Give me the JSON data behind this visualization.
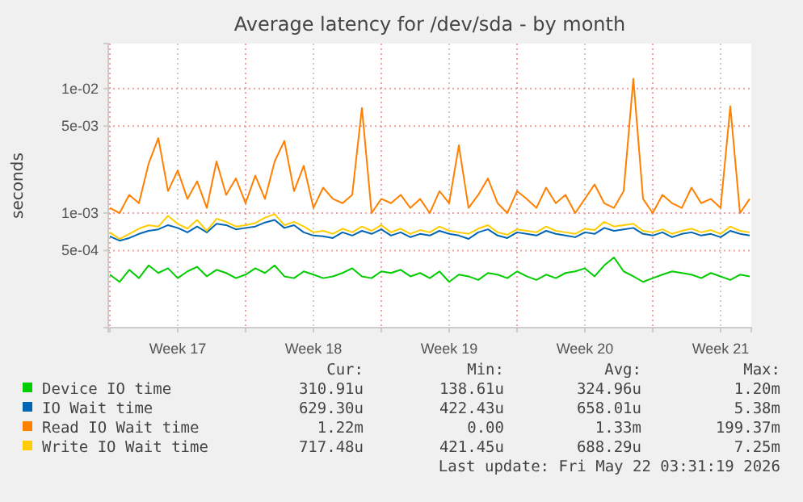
{
  "chart_data": {
    "type": "line",
    "title": "Average latency for /dev/sda - by month",
    "ylabel": "seconds",
    "x": [
      "2026-04-20T00:00",
      "2026-04-20T12:00",
      "2026-04-21T00:00",
      "2026-04-21T12:00",
      "2026-04-22T00:00",
      "2026-04-22T12:00",
      "2026-04-23T00:00",
      "2026-04-23T12:00",
      "2026-04-24T00:00",
      "2026-04-24T12:00",
      "2026-04-25T00:00",
      "2026-04-25T12:00",
      "2026-04-26T00:00",
      "2026-04-26T12:00",
      "2026-04-27T00:00",
      "2026-04-27T12:00",
      "2026-04-28T00:00",
      "2026-04-28T12:00",
      "2026-04-29T00:00",
      "2026-04-29T12:00",
      "2026-04-30T00:00",
      "2026-04-30T12:00",
      "2026-05-01T00:00",
      "2026-05-01T12:00",
      "2026-05-02T00:00",
      "2026-05-02T12:00",
      "2026-05-03T00:00",
      "2026-05-03T12:00",
      "2026-05-04T00:00",
      "2026-05-04T12:00",
      "2026-05-05T00:00",
      "2026-05-05T12:00",
      "2026-05-06T00:00",
      "2026-05-06T12:00",
      "2026-05-07T00:00",
      "2026-05-07T12:00",
      "2026-05-08T00:00",
      "2026-05-08T12:00",
      "2026-05-09T00:00",
      "2026-05-09T12:00",
      "2026-05-10T00:00",
      "2026-05-10T12:00",
      "2026-05-11T00:00",
      "2026-05-11T12:00",
      "2026-05-12T00:00",
      "2026-05-12T12:00",
      "2026-05-13T00:00",
      "2026-05-13T12:00",
      "2026-05-14T00:00",
      "2026-05-14T12:00",
      "2026-05-15T00:00",
      "2026-05-15T12:00",
      "2026-05-16T00:00",
      "2026-05-16T12:00",
      "2026-05-17T00:00",
      "2026-05-17T12:00",
      "2026-05-18T00:00",
      "2026-05-18T12:00",
      "2026-05-19T00:00",
      "2026-05-19T12:00",
      "2026-05-20T00:00",
      "2026-05-20T12:00",
      "2026-05-21T00:00",
      "2026-05-21T12:00",
      "2026-05-22T00:00",
      "2026-05-22T12:00",
      "2026-05-23T00:00"
    ],
    "series": [
      {
        "name": "Device IO time",
        "color": "#00cc00",
        "values": [
          0.00032,
          0.00028,
          0.00035,
          0.0003,
          0.00038,
          0.00033,
          0.00036,
          0.0003,
          0.00034,
          0.00037,
          0.00031,
          0.00035,
          0.00033,
          0.0003,
          0.00032,
          0.00036,
          0.00033,
          0.00038,
          0.00031,
          0.0003,
          0.00034,
          0.00032,
          0.0003,
          0.00031,
          0.00033,
          0.00036,
          0.00031,
          0.0003,
          0.00034,
          0.00033,
          0.00035,
          0.00031,
          0.00033,
          0.0003,
          0.00034,
          0.00028,
          0.00032,
          0.00031,
          0.00029,
          0.00033,
          0.00032,
          0.0003,
          0.00034,
          0.00031,
          0.00029,
          0.00032,
          0.0003,
          0.00033,
          0.00034,
          0.00036,
          0.00031,
          0.00038,
          0.00044,
          0.00034,
          0.00031,
          0.00028,
          0.0003,
          0.00032,
          0.00034,
          0.00033,
          0.00032,
          0.0003,
          0.00033,
          0.00031,
          0.00029,
          0.00032,
          0.00031
        ]
      },
      {
        "name": "IO Wait time",
        "color": "#0066b3",
        "values": [
          0.00065,
          0.0006,
          0.00063,
          0.00068,
          0.00072,
          0.00074,
          0.0008,
          0.00076,
          0.0007,
          0.00078,
          0.0007,
          0.00082,
          0.0008,
          0.00074,
          0.00076,
          0.00078,
          0.00084,
          0.00088,
          0.00076,
          0.0008,
          0.0007,
          0.00066,
          0.00065,
          0.00063,
          0.0007,
          0.00066,
          0.00072,
          0.00068,
          0.00074,
          0.00066,
          0.0007,
          0.00064,
          0.00068,
          0.00066,
          0.00072,
          0.00068,
          0.00066,
          0.00062,
          0.0007,
          0.00074,
          0.00066,
          0.00063,
          0.0007,
          0.00068,
          0.00066,
          0.00072,
          0.00068,
          0.00066,
          0.00064,
          0.0007,
          0.00068,
          0.00076,
          0.00072,
          0.00074,
          0.00076,
          0.00068,
          0.00066,
          0.0007,
          0.00064,
          0.00068,
          0.0007,
          0.00066,
          0.00068,
          0.00064,
          0.00072,
          0.00068,
          0.00066
        ]
      },
      {
        "name": "Read IO Wait time",
        "color": "#ff8000",
        "values": [
          0.0011,
          0.001,
          0.0014,
          0.0012,
          0.0025,
          0.004,
          0.0015,
          0.0022,
          0.0013,
          0.0018,
          0.0011,
          0.0026,
          0.0014,
          0.0019,
          0.0012,
          0.002,
          0.0013,
          0.0026,
          0.0038,
          0.0015,
          0.0024,
          0.0011,
          0.0016,
          0.0013,
          0.0012,
          0.0014,
          0.007,
          0.001,
          0.0013,
          0.0012,
          0.0014,
          0.0011,
          0.0013,
          0.001,
          0.0015,
          0.0012,
          0.0035,
          0.0011,
          0.0014,
          0.0019,
          0.0012,
          0.001,
          0.0015,
          0.0013,
          0.0011,
          0.0016,
          0.0012,
          0.0014,
          0.001,
          0.0013,
          0.0017,
          0.0012,
          0.0011,
          0.0015,
          0.012,
          0.0013,
          0.001,
          0.0014,
          0.0012,
          0.0011,
          0.0016,
          0.0012,
          0.0013,
          0.0011,
          0.0072,
          0.001,
          0.0013
        ]
      },
      {
        "name": "Write IO Wait time",
        "color": "#ffcc00",
        "values": [
          0.0007,
          0.00062,
          0.00068,
          0.00075,
          0.0008,
          0.00078,
          0.00095,
          0.00082,
          0.00075,
          0.00088,
          0.00072,
          0.0009,
          0.00085,
          0.00078,
          0.0008,
          0.00083,
          0.00092,
          0.00098,
          0.0008,
          0.00085,
          0.00078,
          0.0007,
          0.00072,
          0.00068,
          0.00075,
          0.0007,
          0.00078,
          0.00072,
          0.0008,
          0.0007,
          0.00075,
          0.00068,
          0.00073,
          0.0007,
          0.00078,
          0.00072,
          0.0007,
          0.00068,
          0.00075,
          0.0008,
          0.0007,
          0.00067,
          0.00074,
          0.00072,
          0.0007,
          0.00078,
          0.00072,
          0.0007,
          0.00068,
          0.00075,
          0.00073,
          0.00085,
          0.00078,
          0.0008,
          0.00082,
          0.00072,
          0.0007,
          0.00074,
          0.00068,
          0.00072,
          0.00075,
          0.0007,
          0.00073,
          0.00068,
          0.00078,
          0.00072,
          0.0007
        ]
      }
    ],
    "log": true,
    "ylim": [
      0.00012,
      0.023
    ],
    "yticks": [
      {
        "value": 0.0005,
        "label": "5e-04"
      },
      {
        "value": 0.001,
        "label": "1e-03"
      },
      {
        "value": 0.005,
        "label": "5e-03"
      },
      {
        "value": 0.01,
        "label": "1e-02"
      }
    ],
    "xlim": [
      "2026-04-19T22:00",
      "2026-05-23T02:00"
    ],
    "xticks": [
      {
        "value": "2026-04-20",
        "label": null
      },
      {
        "value": "2026-04-23T12:00",
        "label": "Week 17"
      },
      {
        "value": "2026-04-27",
        "label": null
      },
      {
        "value": "2026-04-30T12:00",
        "label": "Week 18"
      },
      {
        "value": "2026-05-04",
        "label": null
      },
      {
        "value": "2026-05-07T12:00",
        "label": "Week 19"
      },
      {
        "value": "2026-05-11",
        "label": null
      },
      {
        "value": "2026-05-14T12:00",
        "label": "Week 20"
      },
      {
        "value": "2026-05-18",
        "label": null
      },
      {
        "value": "2026-05-21T12:00",
        "label": "Week 21"
      }
    ],
    "grid": true,
    "legend": "bottom",
    "marker": "none",
    "line_style": "solid",
    "annotations": [
      "Cur:",
      "Min:",
      "Avg:",
      "Max:",
      "310.91u",
      "138.61u",
      "324.96u",
      "1.20m",
      "629.30u",
      "422.43u",
      "658.01u",
      "5.38m",
      "1.22m",
      "0.00",
      "1.33m",
      "199.37m",
      "717.48u",
      "421.45u",
      "688.29u",
      "7.25m",
      "Last update: Fri May 22 03:31:19 2026"
    ]
  }
}
